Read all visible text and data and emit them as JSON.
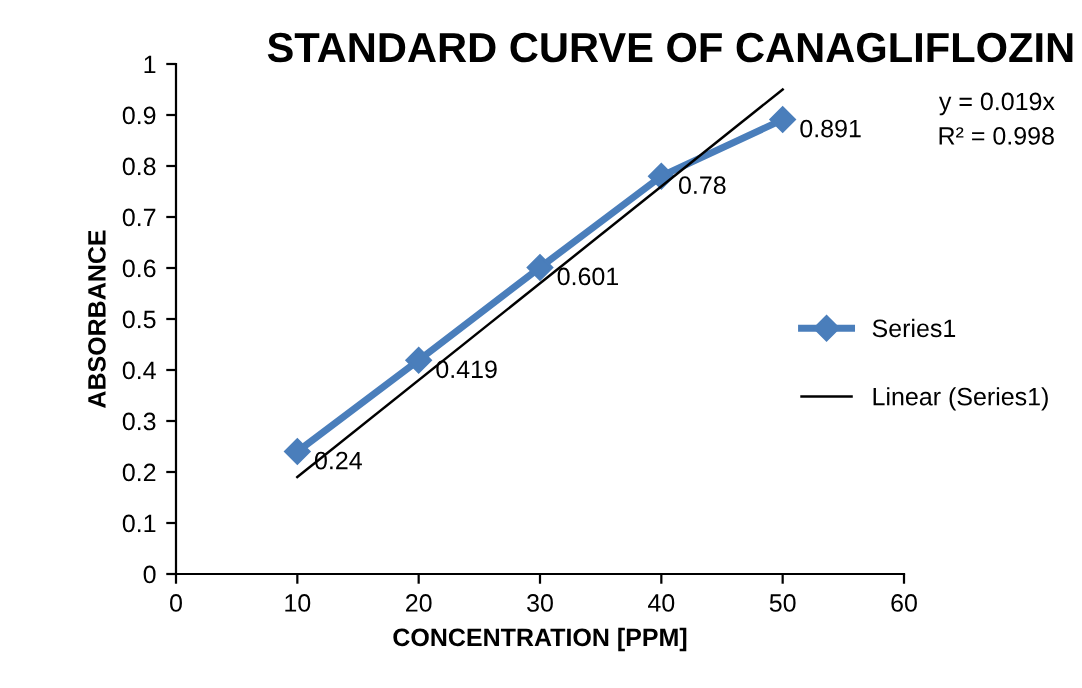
{
  "chart_data": {
    "type": "line",
    "title": "STANDARD CURVE OF CANAGLIFLOZIN",
    "xlabel": "CONCENTRATION [PPM]",
    "ylabel": "ABSORBANCE",
    "series": [
      {
        "name": "Series1",
        "color": "#4a7ebb",
        "x": [
          10,
          20,
          30,
          40,
          50
        ],
        "values": [
          0.24,
          0.419,
          0.601,
          0.78,
          0.891
        ],
        "marker": "diamond",
        "value_labels": [
          "0.24",
          "0.419",
          "0.601",
          "0.78",
          "0.891"
        ]
      },
      {
        "name": "Linear (Series1)",
        "color": "#000000",
        "type": "line",
        "x": [
          10,
          50
        ],
        "values": [
          0.19,
          0.95
        ],
        "marker": "none"
      }
    ],
    "xlim": [
      0,
      60
    ],
    "xticks": [
      0,
      10,
      20,
      30,
      40,
      50,
      60
    ],
    "ylim": [
      0,
      1
    ],
    "yticks": [
      0,
      0.1,
      0.2,
      0.3,
      0.4,
      0.5,
      0.6,
      0.7,
      0.8,
      0.9,
      1
    ],
    "grid": false,
    "legend": "right",
    "annotations": [
      "y = 0.019x",
      "R² = 0.998"
    ]
  }
}
